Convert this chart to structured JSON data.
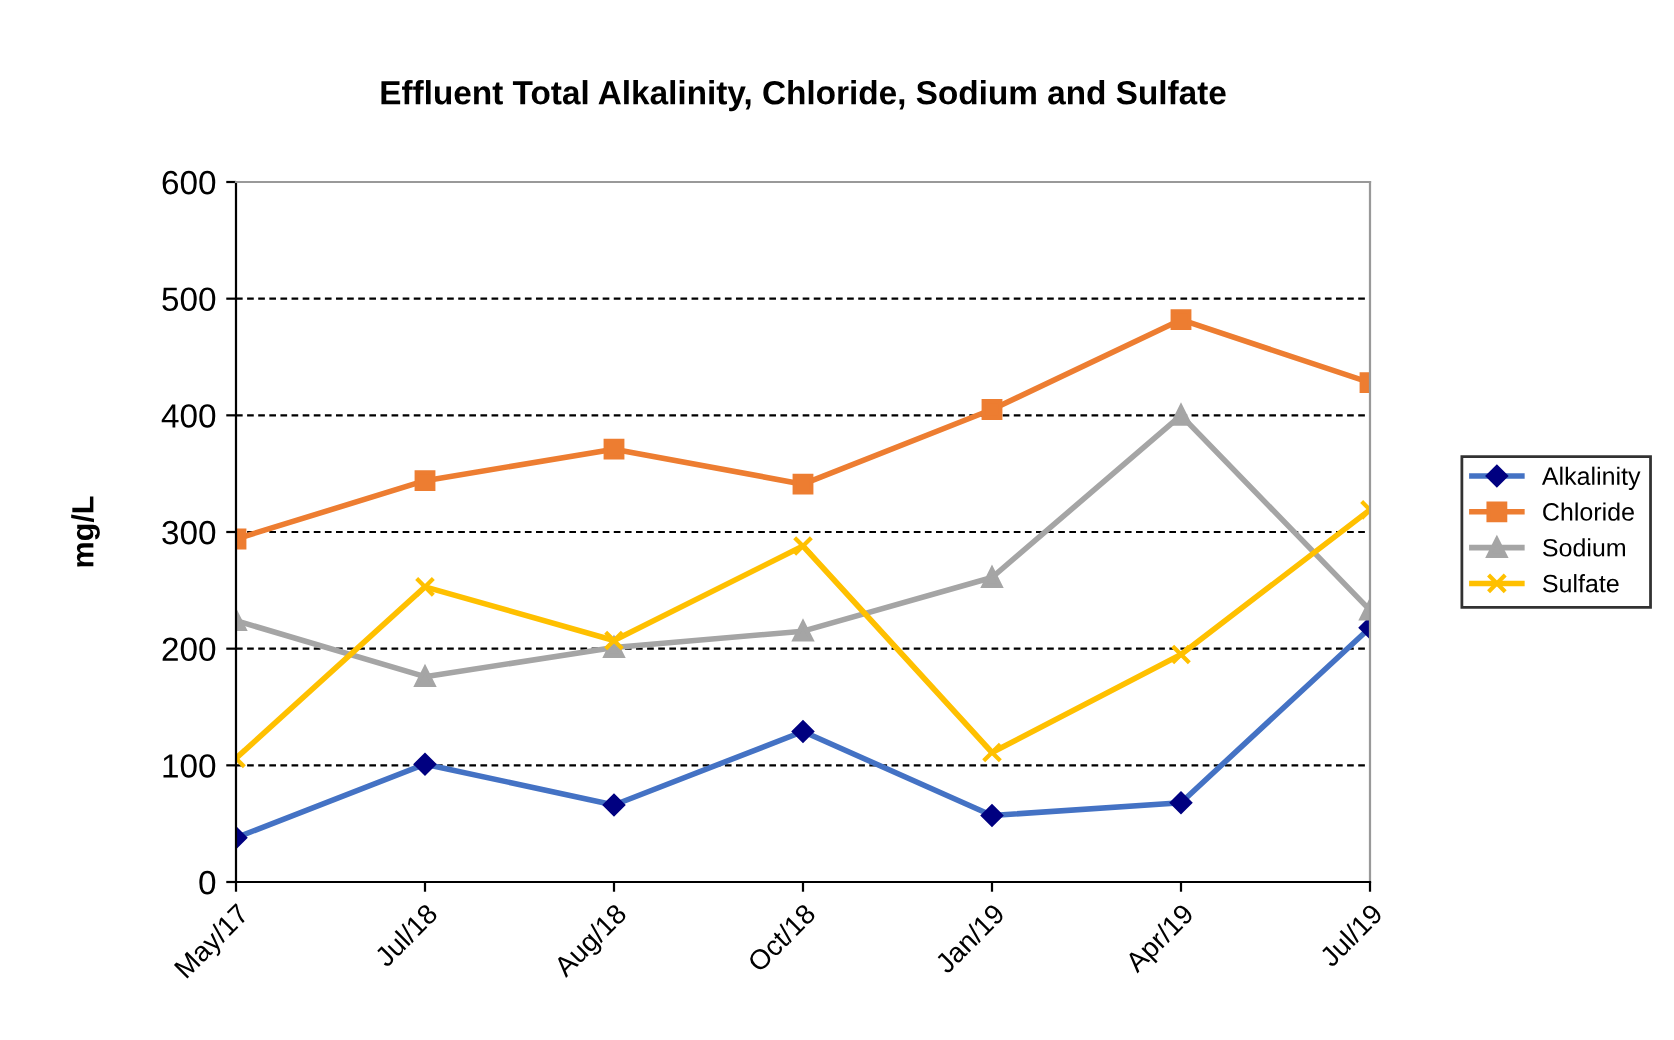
{
  "chart_data": {
    "type": "line",
    "title": "Effluent Total Alkalinity, Chloride, Sodium and Sulfate",
    "ylabel": "mg/L",
    "categories": [
      "May/17",
      "Jul/18",
      "Aug/18",
      "Oct/18",
      "Jan/19",
      "Apr/19",
      "Jul/19"
    ],
    "series": [
      {
        "name": "Alkalinity",
        "color": "#4472c4",
        "marker": "diamond",
        "values": [
          38,
          101,
          66,
          129,
          57,
          68,
          218
        ]
      },
      {
        "name": "Chloride",
        "color": "#ed7d31",
        "marker": "square",
        "values": [
          294,
          344,
          371,
          341,
          405,
          482,
          428
        ]
      },
      {
        "name": "Sodium",
        "color": "#a5a5a5",
        "marker": "triangle",
        "values": [
          224,
          176,
          201,
          215,
          261,
          400,
          233
        ]
      },
      {
        "name": "Sulfate",
        "color": "#ffc000",
        "marker": "cross",
        "values": [
          106,
          253,
          207,
          288,
          111,
          195,
          319
        ]
      }
    ],
    "ylim": [
      0,
      600
    ],
    "yticks": [
      0,
      100,
      200,
      300,
      400,
      500,
      600
    ],
    "grid": "y",
    "legend": "right",
    "line_style": "solid"
  }
}
